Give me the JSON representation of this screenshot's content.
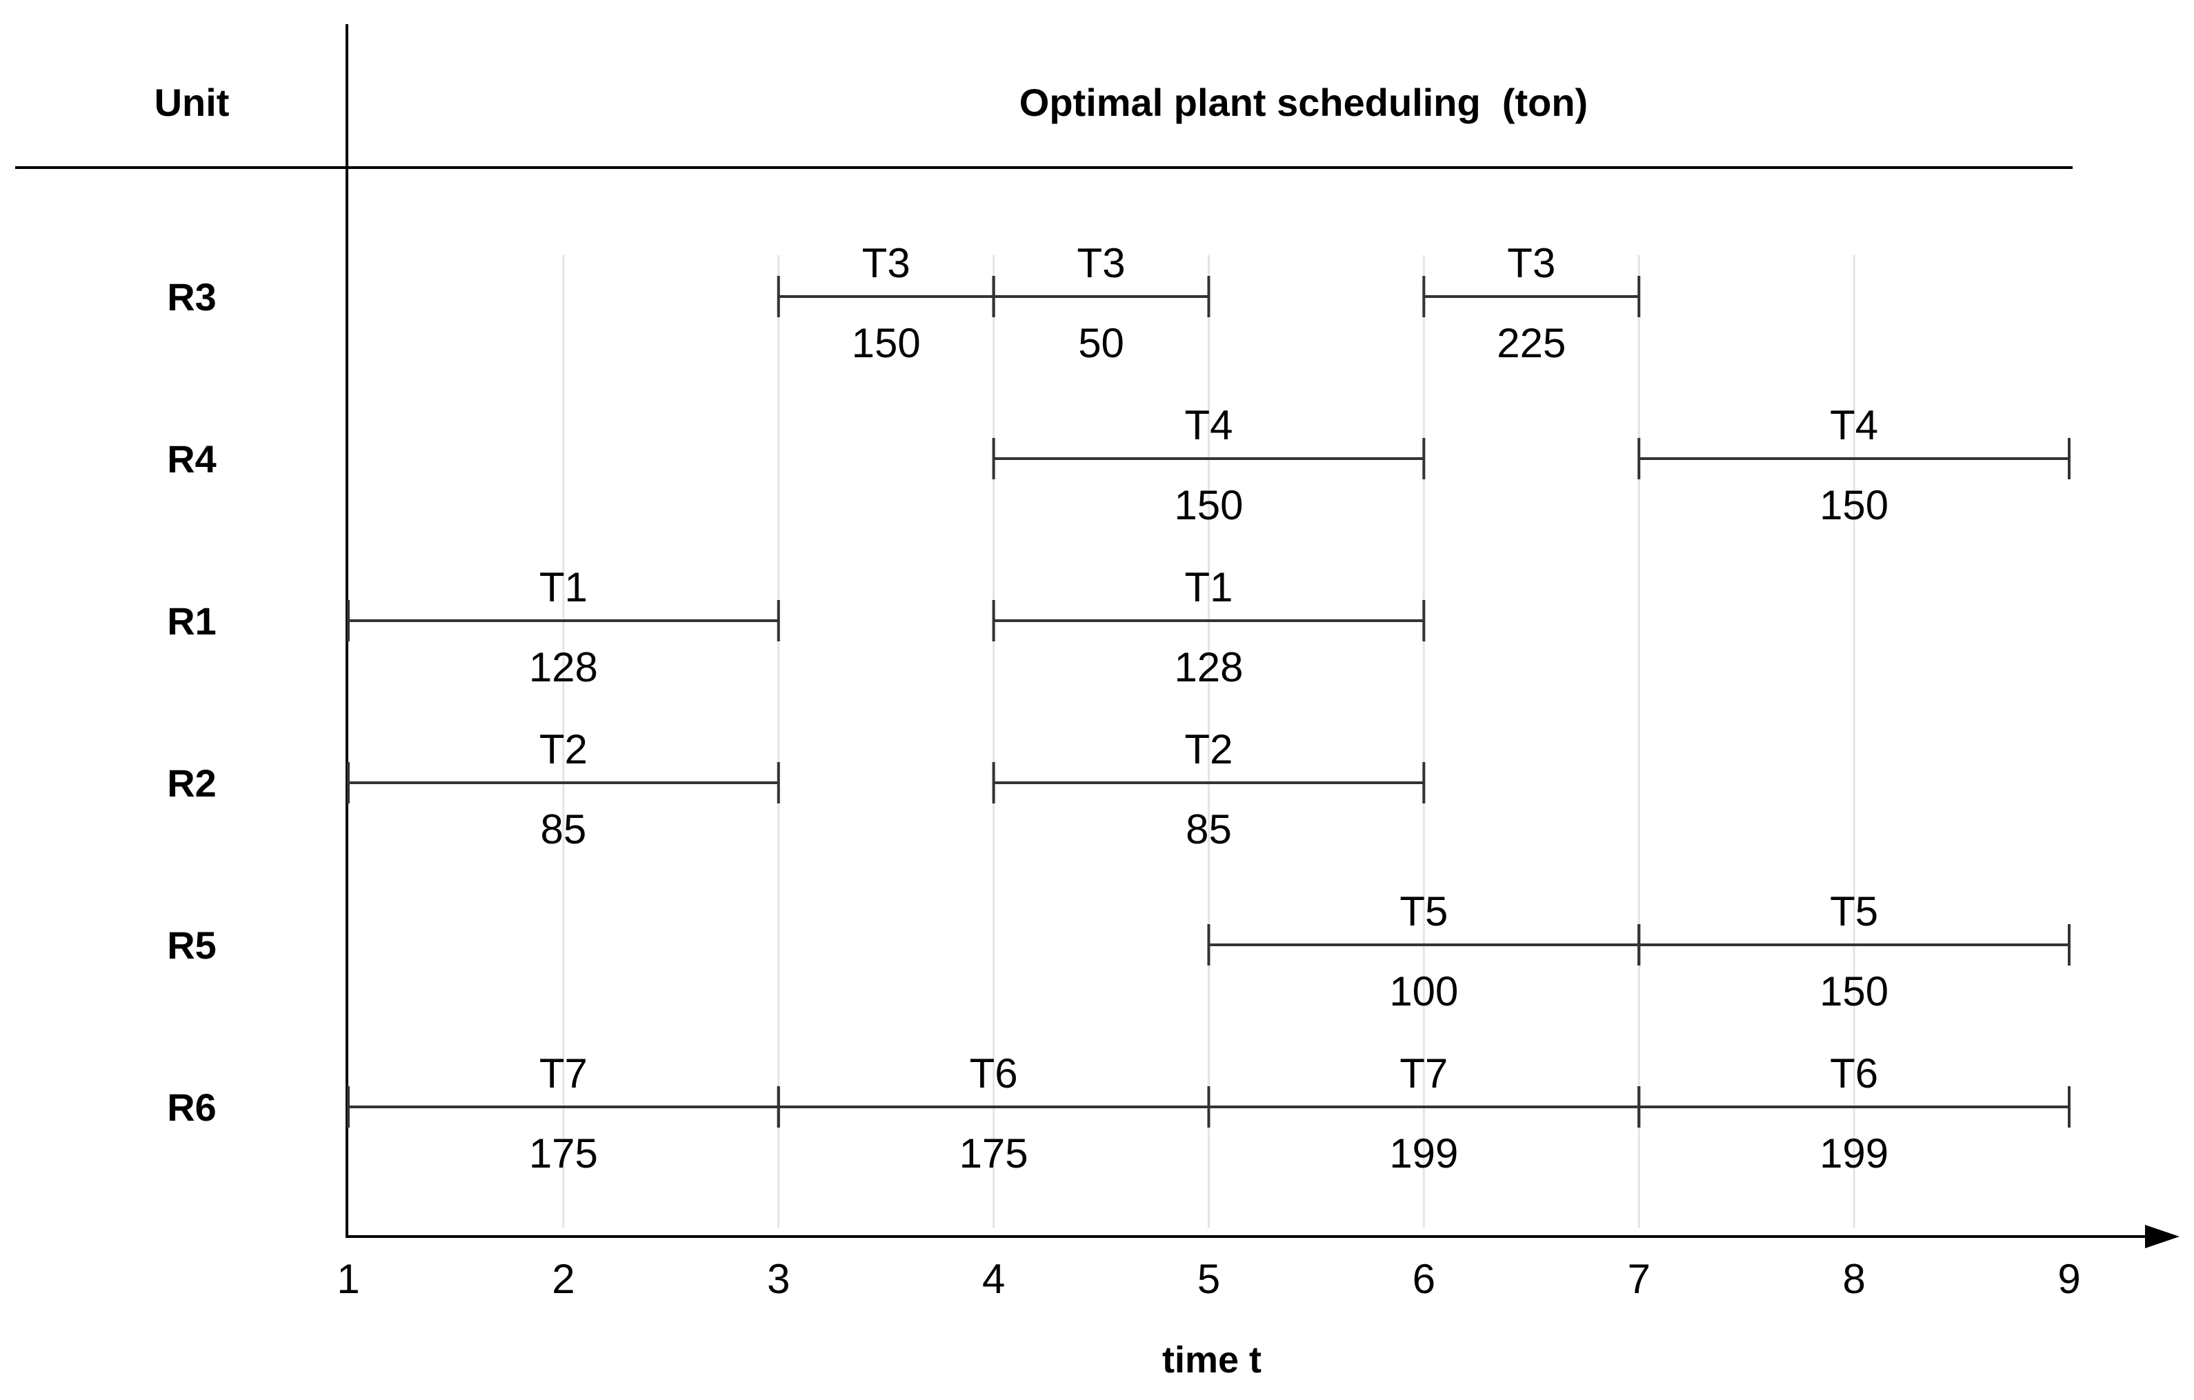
{
  "header": {
    "unit_label": "Unit",
    "title": "Optimal plant scheduling  (ton)"
  },
  "axis": {
    "title": "time t",
    "ticks": [
      "1",
      "2",
      "3",
      "4",
      "5",
      "6",
      "7",
      "8",
      "9"
    ],
    "range": [
      1,
      9
    ]
  },
  "units": [
    {
      "name": "R3",
      "tasks": [
        {
          "label": "T3",
          "amount": "150",
          "start": 3,
          "end": 4
        },
        {
          "label": "T3",
          "amount": "50",
          "start": 4,
          "end": 5
        },
        {
          "label": "T3",
          "amount": "225",
          "start": 6,
          "end": 7
        }
      ]
    },
    {
      "name": "R4",
      "tasks": [
        {
          "label": "T4",
          "amount": "150",
          "start": 4,
          "end": 6
        },
        {
          "label": "T4",
          "amount": "150",
          "start": 7,
          "end": 9
        }
      ]
    },
    {
      "name": "R1",
      "tasks": [
        {
          "label": "T1",
          "amount": "128",
          "start": 1,
          "end": 3
        },
        {
          "label": "T1",
          "amount": "128",
          "start": 4,
          "end": 6
        }
      ]
    },
    {
      "name": "R2",
      "tasks": [
        {
          "label": "T2",
          "amount": "85",
          "start": 1,
          "end": 3
        },
        {
          "label": "T2",
          "amount": "85",
          "start": 4,
          "end": 6
        }
      ]
    },
    {
      "name": "R5",
      "tasks": [
        {
          "label": "T5",
          "amount": "100",
          "start": 5,
          "end": 7
        },
        {
          "label": "T5",
          "amount": "150",
          "start": 7,
          "end": 9
        }
      ]
    },
    {
      "name": "R6",
      "tasks": [
        {
          "label": "T7",
          "amount": "175",
          "start": 1,
          "end": 3
        },
        {
          "label": "T6",
          "amount": "175",
          "start": 3,
          "end": 5
        },
        {
          "label": "T7",
          "amount": "199",
          "start": 5,
          "end": 7
        },
        {
          "label": "T6",
          "amount": "199",
          "start": 7,
          "end": 9
        }
      ]
    }
  ]
}
